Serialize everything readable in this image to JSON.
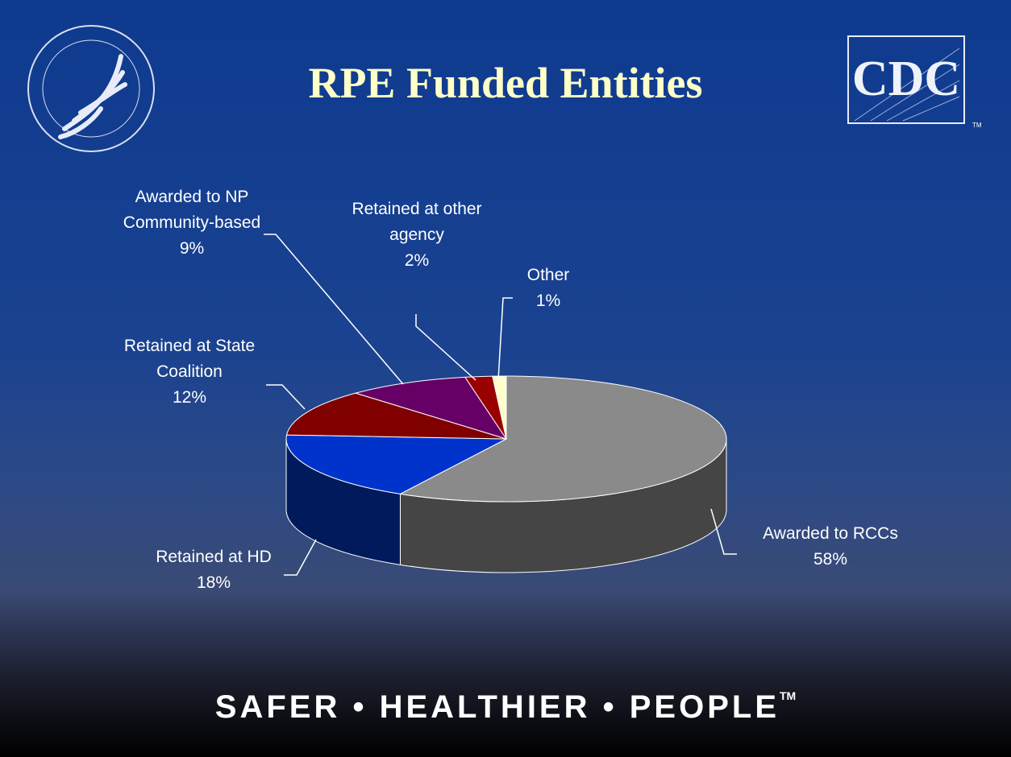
{
  "chart_data": {
    "type": "pie",
    "title": "RPE Funded Entities",
    "categories": [
      "Awarded to RCCs",
      "Retained at HD",
      "Retained at State Coalition",
      "Awarded to NP Community-based",
      "Retained at other agency",
      "Other"
    ],
    "values": [
      58,
      18,
      12,
      9,
      2,
      1
    ],
    "value_labels": [
      "58%",
      "18%",
      "12%",
      "9%",
      "2%",
      "1%"
    ],
    "colors": [
      "#8a8a8a",
      "#0033cc",
      "#800000",
      "#660066",
      "#990000",
      "#ffffcc"
    ],
    "side_colors": [
      "#454545",
      "#001a5c",
      "#4d0000",
      "#3d003d",
      "#5c0000",
      "#b3b38f"
    ]
  },
  "logo_text": "CDC",
  "logo_mark": "TM",
  "footer": "SAFER • HEALTHIER • PEOPLE",
  "footer_mark": "TM"
}
